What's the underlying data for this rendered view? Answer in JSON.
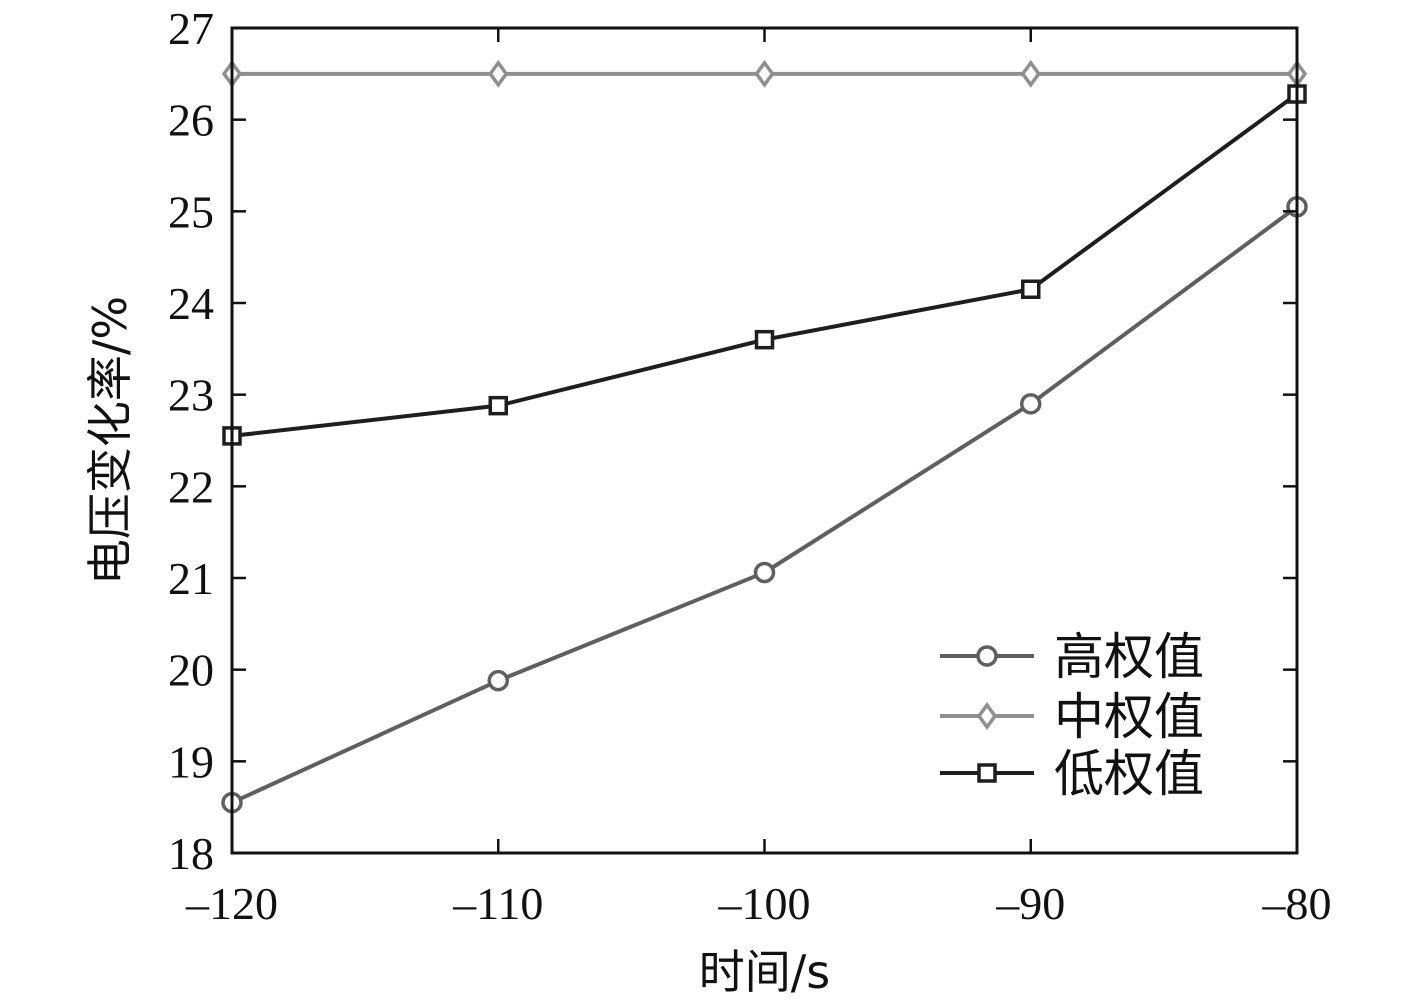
{
  "chart_data": {
    "type": "line",
    "title": "",
    "xlabel": "时间/s",
    "ylabel": "电压变化率/%",
    "x": [
      -120,
      -110,
      -100,
      -90,
      -80
    ],
    "xlim": [
      -120,
      -80
    ],
    "ylim": [
      18,
      27
    ],
    "xticks": [
      -120,
      -110,
      -100,
      -90,
      -80
    ],
    "xtick_labels": [
      "–120",
      "–110",
      "–100",
      "–90",
      "–80"
    ],
    "yticks": [
      18,
      19,
      20,
      21,
      22,
      23,
      24,
      25,
      26,
      27
    ],
    "ytick_labels": [
      "18",
      "19",
      "20",
      "21",
      "22",
      "23",
      "24",
      "25",
      "26",
      "27"
    ],
    "grid": false,
    "legend_position": "bottom-right",
    "series": [
      {
        "name": "高权值",
        "values": [
          18.55,
          19.88,
          21.06,
          22.9,
          25.05
        ],
        "marker": "circle",
        "color": "#5f5f5f"
      },
      {
        "name": "中权值",
        "values": [
          26.5,
          26.5,
          26.5,
          26.5,
          26.5
        ],
        "marker": "diamond",
        "color": "#8f8f8f"
      },
      {
        "name": "低权值",
        "values": [
          22.55,
          22.88,
          23.6,
          24.15,
          26.28
        ],
        "marker": "square",
        "color": "#1e1e1e"
      }
    ]
  }
}
